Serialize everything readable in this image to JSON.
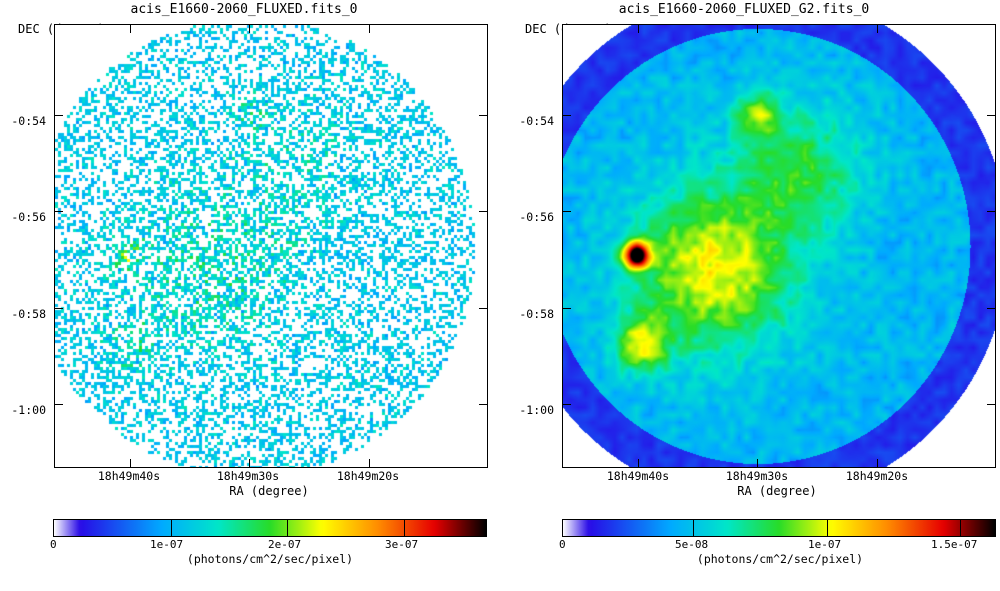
{
  "panels": [
    {
      "title": "acis_E1660-2060_FLUXED.fits_0",
      "y_label": "DEC (degree)",
      "x_label": "RA (degree)",
      "y_ticks": [
        "-0:54",
        "-0:56",
        "-0:58",
        "-1:00"
      ],
      "x_ticks": [
        "18h49m40s",
        "18h49m30s",
        "18h49m20s"
      ],
      "colorbar": {
        "ticks": [
          "0",
          "1e-07",
          "2e-07",
          "3e-07"
        ],
        "units": "(photons/cm^2/sec/pixel)"
      }
    },
    {
      "title": "acis_E1660-2060_FLUXED_G2.fits_0",
      "y_label": "DEC (degree)",
      "x_label": "RA (degree)",
      "y_ticks": [
        "-0:54",
        "-0:56",
        "-0:58",
        "-1:00"
      ],
      "x_ticks": [
        "18h49m40s",
        "18h49m30s",
        "18h49m20s"
      ],
      "colorbar": {
        "ticks": [
          "0",
          "5e-08",
          "1e-07",
          "1.5e-07"
        ],
        "units": "(photons/cm^2/sec/pixel)"
      }
    }
  ]
}
